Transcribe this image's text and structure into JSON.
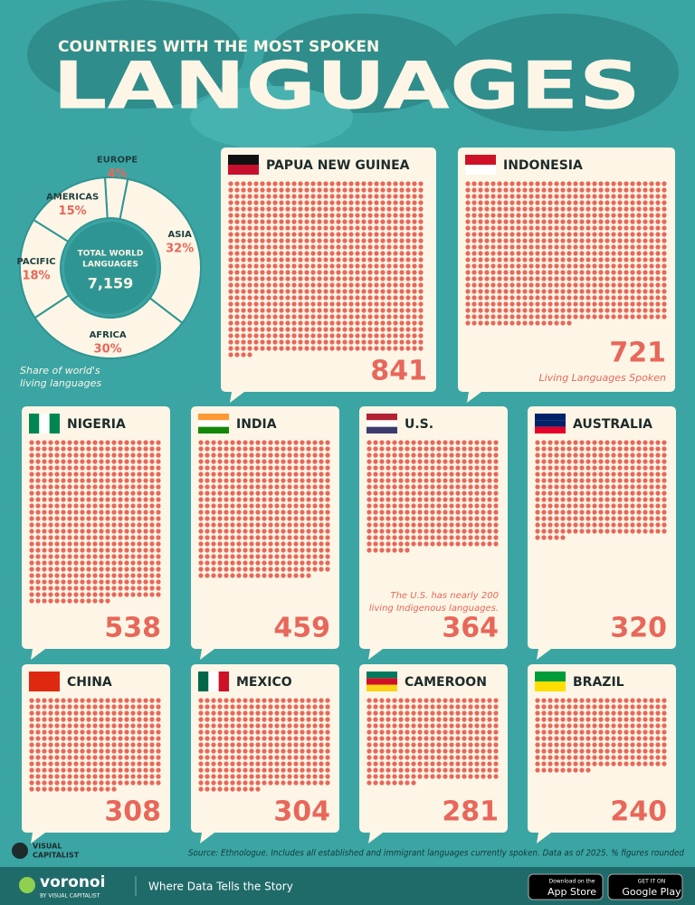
{
  "header": {
    "kicker": "COUNTRIES WITH THE MOST SPOKEN",
    "title": "LANGUAGES"
  },
  "chart_data": [
    {
      "type": "pie",
      "center_label": [
        "TOTAL WORLD",
        "LANGUAGES"
      ],
      "center_value": "7,159",
      "categories": [
        "EUROPE",
        "ASIA",
        "AFRICA",
        "PACIFIC",
        "AMERICAS"
      ],
      "values": [
        4,
        32,
        30,
        18,
        15
      ],
      "value_labels": [
        "4%",
        "32%",
        "30%",
        "18%",
        "15%"
      ],
      "note_lines": [
        "Share of world's",
        "living languages"
      ]
    },
    {
      "type": "waffle",
      "color": "#e8675a",
      "categories": [
        "PAPUA NEW GUINEA",
        "INDONESIA",
        "NIGERIA",
        "INDIA",
        "U.S.",
        "AUSTRALIA",
        "CHINA",
        "MEXICO",
        "CAMEROON",
        "BRAZIL"
      ],
      "values": [
        841,
        721,
        538,
        459,
        364,
        320,
        308,
        304,
        281,
        240
      ],
      "unit_label": "Living Languages Spoken",
      "note_lines": [
        "The U.S. has nearly 200",
        "living Indigenous languages."
      ]
    }
  ],
  "footer": {
    "source": "Source: Ethnologue. Includes all established and immigrant languages currently spoken. Data as of 2025. % figures rounded",
    "logo": [
      "VISUAL",
      "CAPITALIST"
    ],
    "brand": "voronoi",
    "brand_sub": "BY VISUAL CAPITALIST",
    "tagline": "Where Data Tells the Story",
    "app_store": [
      "Download on the",
      "App Store"
    ],
    "google_play": [
      "GET IT ON",
      "Google Play"
    ]
  }
}
